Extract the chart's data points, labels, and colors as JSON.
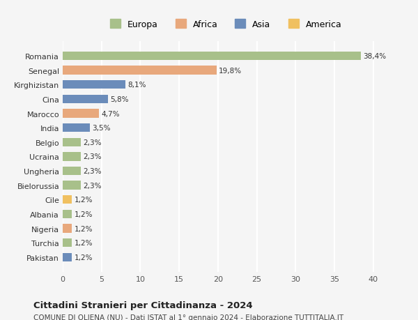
{
  "categories": [
    "Pakistan",
    "Turchia",
    "Nigeria",
    "Albania",
    "Cile",
    "Bielorussia",
    "Ungheria",
    "Ucraina",
    "Belgio",
    "India",
    "Marocco",
    "Cina",
    "Kirghizistan",
    "Senegal",
    "Romania"
  ],
  "values": [
    1.2,
    1.2,
    1.2,
    1.2,
    1.2,
    2.3,
    2.3,
    2.3,
    2.3,
    3.5,
    4.7,
    5.8,
    8.1,
    19.8,
    38.4
  ],
  "labels": [
    "1,2%",
    "1,2%",
    "1,2%",
    "1,2%",
    "1,2%",
    "2,3%",
    "2,3%",
    "2,3%",
    "2,3%",
    "3,5%",
    "4,7%",
    "5,8%",
    "8,1%",
    "19,8%",
    "38,4%"
  ],
  "colors": [
    "#6b8cba",
    "#a8c08a",
    "#e8a87c",
    "#a8c08a",
    "#f0c060",
    "#a8c08a",
    "#a8c08a",
    "#a8c08a",
    "#a8c08a",
    "#6b8cba",
    "#e8a87c",
    "#6b8cba",
    "#6b8cba",
    "#e8a87c",
    "#a8c08a"
  ],
  "legend_labels": [
    "Europa",
    "Africa",
    "Asia",
    "America"
  ],
  "legend_colors": [
    "#a8c08a",
    "#e8a87c",
    "#6b8cba",
    "#f0c060"
  ],
  "title": "Cittadini Stranieri per Cittadinanza - 2024",
  "subtitle": "COMUNE DI OLIENA (NU) - Dati ISTAT al 1° gennaio 2024 - Elaborazione TUTTITALIA.IT",
  "xlim": [
    0,
    42
  ],
  "xticks": [
    0,
    5,
    10,
    15,
    20,
    25,
    30,
    35,
    40
  ],
  "bg_color": "#f5f5f5",
  "grid_color": "#ffffff",
  "bar_height": 0.6
}
